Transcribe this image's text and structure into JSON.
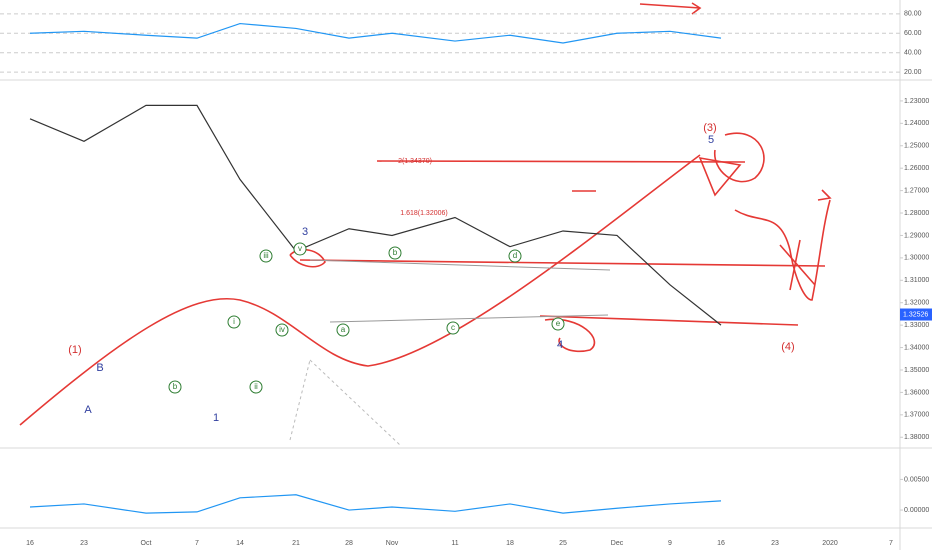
{
  "chart_data": [
    {
      "type": "line",
      "color": "#2196f3",
      "values": [
        60,
        62,
        58,
        55,
        70,
        65,
        55,
        60,
        52,
        58,
        50,
        60,
        62,
        55,
        null,
        null,
        null
      ],
      "ylim": [
        14,
        86
      ],
      "yticks": [
        {
          "value": 80,
          "label": "80.00"
        },
        {
          "value": 60,
          "label": "60.00"
        },
        {
          "value": 40,
          "label": "40.00"
        },
        {
          "value": 20,
          "label": "20.00"
        }
      ],
      "grid": true
    },
    {
      "type": "line",
      "color": "#333333",
      "categories": [
        "16",
        "23",
        "Oct",
        "7",
        "14",
        "21",
        "28",
        "Nov",
        "11",
        "18",
        "25",
        "Dec",
        "9",
        "16",
        "23",
        "2020",
        "7"
      ],
      "values": [
        1.238,
        1.248,
        1.232,
        1.232,
        1.265,
        1.297,
        1.287,
        1.29,
        1.282,
        1.295,
        1.288,
        1.29,
        1.312,
        1.33,
        null,
        null,
        null
      ],
      "ylim": [
        1.3839,
        1.2229
      ],
      "yticks": [
        {
          "value": 1.38,
          "label": "1.38000"
        },
        {
          "value": 1.37,
          "label": "1.37000"
        },
        {
          "value": 1.36,
          "label": "1.36000"
        },
        {
          "value": 1.35,
          "label": "1.35000"
        },
        {
          "value": 1.34,
          "label": "1.34000"
        },
        {
          "value": 1.33,
          "label": "1.33000"
        },
        {
          "value": 1.32,
          "label": "1.32000"
        },
        {
          "value": 1.31,
          "label": "1.31000"
        },
        {
          "value": 1.3,
          "label": "1.30000"
        },
        {
          "value": 1.29,
          "label": "1.29000"
        },
        {
          "value": 1.28,
          "label": "1.28000"
        },
        {
          "value": 1.27,
          "label": "1.27000"
        },
        {
          "value": 1.26,
          "label": "1.26000"
        },
        {
          "value": 1.25,
          "label": "1.25000"
        },
        {
          "value": 1.24,
          "label": "1.24000"
        },
        {
          "value": 1.23,
          "label": "1.23000"
        }
      ],
      "last_price": {
        "value": 1.32526,
        "label": "1.32526",
        "color": "#2962ff"
      },
      "annotations": [
        {
          "text": "(1)",
          "color": "#d32f2f"
        },
        {
          "text": "B",
          "color": "#303f9f"
        },
        {
          "text": "A",
          "color": "#303f9f"
        },
        {
          "text": "b",
          "color": "#2e7d32"
        },
        {
          "text": "1",
          "color": "#303f9f"
        },
        {
          "text": "i",
          "color": "#2e7d32"
        },
        {
          "text": "ii",
          "color": "#2e7d32"
        },
        {
          "text": "iii",
          "color": "#2e7d32"
        },
        {
          "text": "iv",
          "color": "#2e7d32"
        },
        {
          "text": "v",
          "color": "#2e7d32"
        },
        {
          "text": "3",
          "color": "#303f9f"
        },
        {
          "text": "a",
          "color": "#2e7d32"
        },
        {
          "text": "b",
          "color": "#2e7d32"
        },
        {
          "text": "c",
          "color": "#2e7d32"
        },
        {
          "text": "d",
          "color": "#2e7d32"
        },
        {
          "text": "e",
          "color": "#2e7d32"
        },
        {
          "text": "4",
          "color": "#303f9f"
        },
        {
          "text": "(3)",
          "color": "#d32f2f"
        },
        {
          "text": "5",
          "color": "#303f9f"
        },
        {
          "text": "(4)",
          "color": "#d32f2f"
        },
        {
          "text": "2(1.34370)",
          "color": "#d32f2f"
        },
        {
          "text": "1.618(1.32006)",
          "color": "#d32f2f"
        }
      ]
    },
    {
      "type": "line",
      "color": "#2196f3",
      "values": [
        0.0005,
        0.001,
        -0.0005,
        -0.0003,
        0.002,
        0.0025,
        0,
        0.0005,
        -0.0002,
        0.001,
        -0.0005,
        0.0003,
        0.001,
        0.0015,
        null,
        null,
        null
      ],
      "ylim": [
        -0.0026,
        0.0098
      ],
      "yticks": [
        {
          "value": 0.005,
          "label": "0.00500"
        },
        {
          "value": 0,
          "label": "0.00000"
        }
      ]
    }
  ]
}
